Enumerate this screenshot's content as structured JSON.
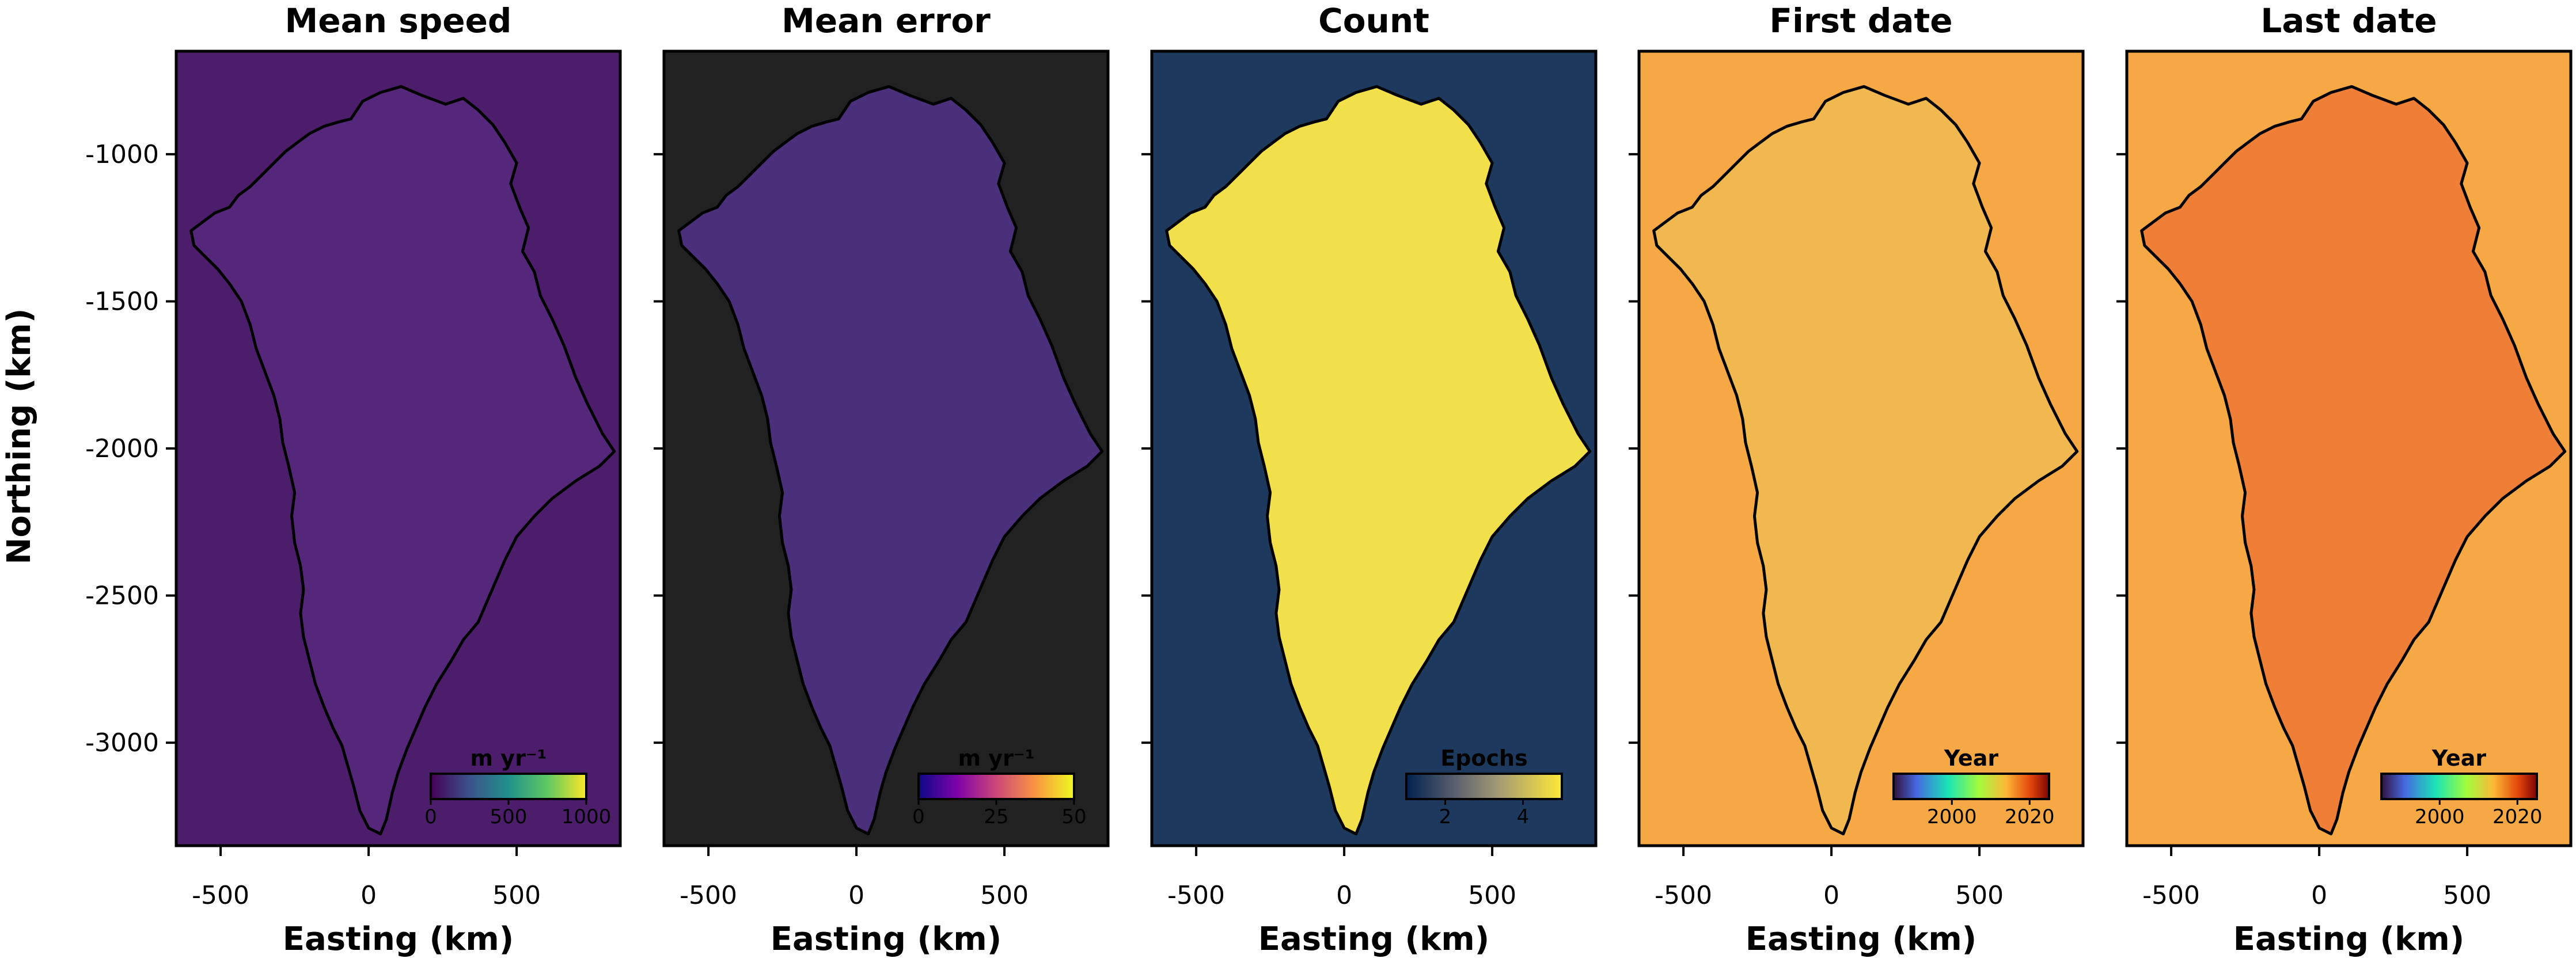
{
  "figure": {
    "ylabel": "Northing (km)",
    "xlabel": "Easting (km)"
  },
  "chart_data": [
    {
      "type": "heatmap",
      "title": "Mean speed",
      "xlabel": "Easting (km)",
      "ylabel": "Northing (km)",
      "xlim": [
        -650,
        850
      ],
      "ylim": [
        -3350,
        -650
      ],
      "xticks": [
        -500,
        0,
        500
      ],
      "yticks": [
        -1000,
        -1500,
        -2000,
        -2500,
        -3000
      ],
      "background_color": "#4b1d6b",
      "fill_color": "#55277a",
      "colorbar": {
        "label": "m yr⁻¹",
        "ticks": [
          0,
          500,
          1000
        ],
        "range": [
          0,
          1000
        ],
        "colormap": "viridis"
      }
    },
    {
      "type": "heatmap",
      "title": "Mean error",
      "xlabel": "Easting (km)",
      "xlim": [
        -650,
        850
      ],
      "ylim": [
        -3350,
        -650
      ],
      "xticks": [
        -500,
        0,
        500
      ],
      "yticks": [
        -1000,
        -1500,
        -2000,
        -2500,
        -3000
      ],
      "background_color": "#212121",
      "fill_color": "#4a2f7a",
      "colorbar": {
        "label": "m yr⁻¹",
        "ticks": [
          0,
          25,
          50
        ],
        "range": [
          0,
          50
        ],
        "colormap": "plasma"
      }
    },
    {
      "type": "heatmap",
      "title": "Count",
      "xlabel": "Easting (km)",
      "xlim": [
        -650,
        850
      ],
      "ylim": [
        -3350,
        -650
      ],
      "xticks": [
        -500,
        0,
        500
      ],
      "yticks": [
        -1000,
        -1500,
        -2000,
        -2500,
        -3000
      ],
      "background_color": "#1d3a5e",
      "fill_color": "#f2e04a",
      "colorbar": {
        "label": "Epochs",
        "ticks": [
          2,
          4
        ],
        "range": [
          1,
          5
        ],
        "colormap": "cividis"
      }
    },
    {
      "type": "heatmap",
      "title": "First date",
      "xlabel": "Easting (km)",
      "xlim": [
        -650,
        850
      ],
      "ylim": [
        -3350,
        -650
      ],
      "xticks": [
        -500,
        0,
        500
      ],
      "yticks": [
        -1000,
        -1500,
        -2000,
        -2500,
        -3000
      ],
      "background_color": "#f5a844",
      "fill_color": "#f0b84e",
      "colorbar": {
        "label": "Year",
        "ticks": [
          2000,
          2020
        ],
        "range": [
          1985,
          2025
        ],
        "colormap": "turbo"
      }
    },
    {
      "type": "heatmap",
      "title": "Last date",
      "xlabel": "Easting (km)",
      "xlim": [
        -650,
        850
      ],
      "ylim": [
        -3350,
        -650
      ],
      "xticks": [
        -500,
        0,
        500
      ],
      "yticks": [
        -1000,
        -1500,
        -2000,
        -2500,
        -3000
      ],
      "background_color": "#f5a844",
      "fill_color": "#ef7e36",
      "colorbar": {
        "label": "Year",
        "ticks": [
          2000,
          2020
        ],
        "range": [
          1985,
          2025
        ],
        "colormap": "turbo"
      }
    }
  ]
}
